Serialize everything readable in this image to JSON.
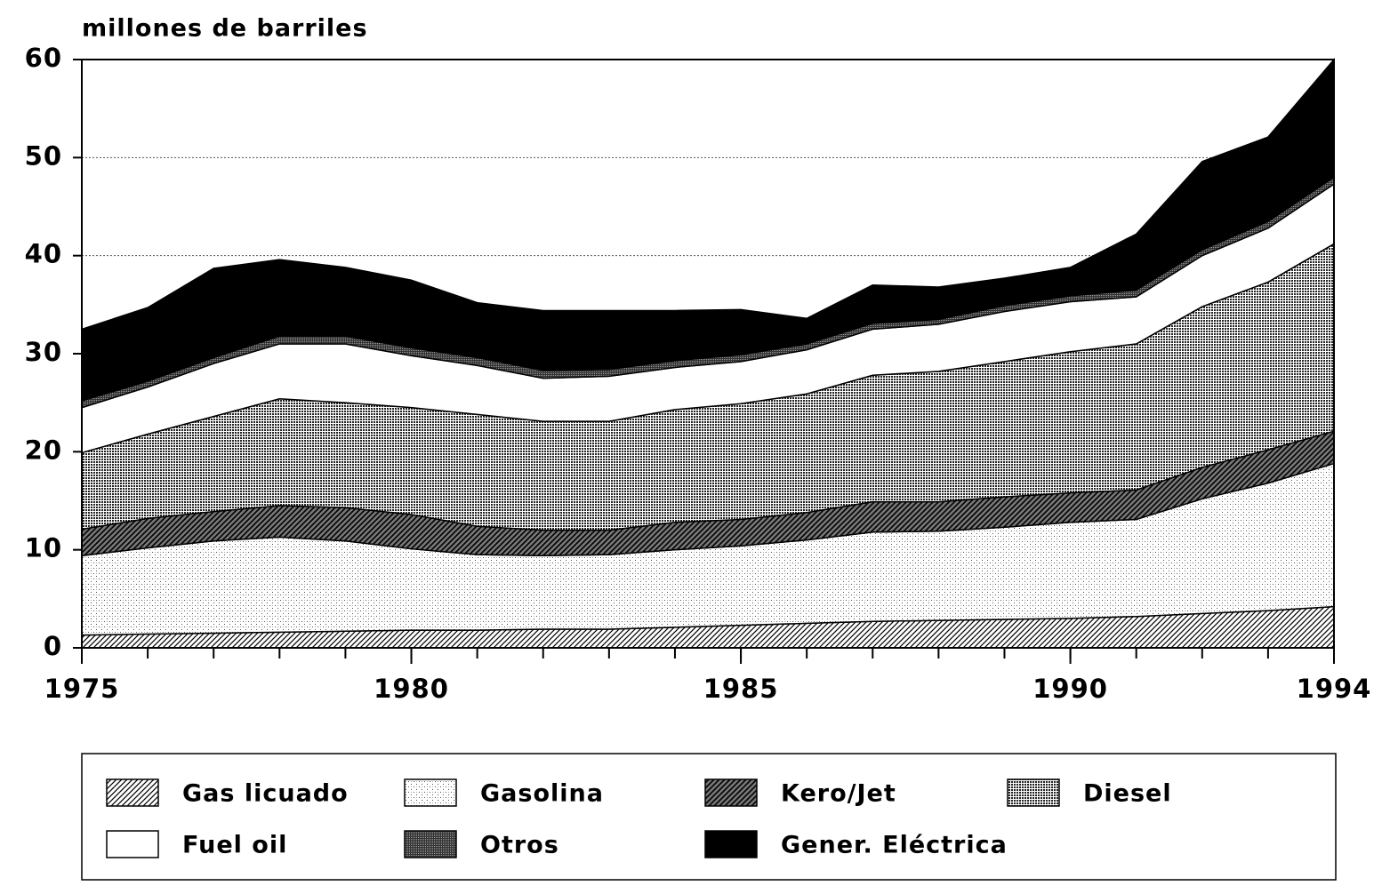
{
  "chart_data": {
    "type": "stacked-area",
    "ylabel": "millones de barriles",
    "x": [
      1975,
      1976,
      1977,
      1978,
      1979,
      1980,
      1981,
      1982,
      1983,
      1984,
      1985,
      1986,
      1987,
      1988,
      1989,
      1990,
      1991,
      1992,
      1993,
      1994
    ],
    "xlim": [
      1975,
      1994
    ],
    "xticks": [
      1975,
      1980,
      1985,
      1990,
      1994
    ],
    "ylim": [
      0,
      60
    ],
    "yticks": [
      0,
      10,
      20,
      30,
      40,
      50,
      60
    ],
    "grid": true,
    "legend": "bottom",
    "series": [
      {
        "name": "Gas licuado",
        "color": "#000000",
        "pattern": "hatch",
        "values": [
          1.3,
          1.4,
          1.5,
          1.6,
          1.7,
          1.8,
          1.8,
          1.9,
          1.9,
          2.1,
          2.3,
          2.5,
          2.7,
          2.8,
          2.9,
          3.0,
          3.2,
          3.5,
          3.8,
          4.2
        ]
      },
      {
        "name": "Gasolina",
        "color": "#555555",
        "pattern": "light-dots",
        "values": [
          8.1,
          8.8,
          9.4,
          9.7,
          9.2,
          8.3,
          7.7,
          7.5,
          7.6,
          7.9,
          8.1,
          8.5,
          9.1,
          9.1,
          9.4,
          9.8,
          9.9,
          11.7,
          13.0,
          14.6
        ]
      },
      {
        "name": "Kero/Jet",
        "color": "#000000",
        "pattern": "dark-hatch",
        "values": [
          2.7,
          3.0,
          3.0,
          3.2,
          3.4,
          3.5,
          2.9,
          2.6,
          2.5,
          2.8,
          2.7,
          2.8,
          3.1,
          3.0,
          3.1,
          3.0,
          3.0,
          3.2,
          3.4,
          3.3
        ]
      },
      {
        "name": "Diesel",
        "color": "#222222",
        "pattern": "dots",
        "values": [
          7.8,
          8.6,
          9.7,
          10.9,
          10.7,
          10.9,
          11.4,
          11.1,
          11.1,
          11.5,
          11.8,
          12.1,
          12.9,
          13.3,
          13.8,
          14.4,
          14.9,
          16.4,
          17.1,
          19.1
        ]
      },
      {
        "name": "Fuel oil",
        "color": "#ffffff",
        "pattern": "solid",
        "values": [
          4.6,
          4.8,
          5.4,
          5.6,
          6.0,
          5.3,
          5.0,
          4.4,
          4.6,
          4.3,
          4.3,
          4.5,
          4.7,
          4.8,
          5.1,
          5.1,
          4.8,
          5.2,
          5.5,
          6.1
        ]
      },
      {
        "name": "Otros",
        "color": "#333333",
        "pattern": "dense",
        "values": [
          0.7,
          0.6,
          0.6,
          0.8,
          0.8,
          0.8,
          0.8,
          0.8,
          0.7,
          0.7,
          0.7,
          0.6,
          0.6,
          0.5,
          0.6,
          0.6,
          0.7,
          0.6,
          0.7,
          0.7
        ]
      },
      {
        "name": "Gener. Eléctrica",
        "color": "#000000",
        "pattern": "solid",
        "values": [
          7.3,
          7.5,
          9.1,
          7.8,
          7.0,
          6.9,
          5.6,
          6.1,
          6.0,
          5.1,
          4.6,
          2.6,
          3.9,
          3.3,
          2.8,
          2.9,
          5.7,
          9.0,
          8.6,
          12.0
        ]
      }
    ]
  }
}
